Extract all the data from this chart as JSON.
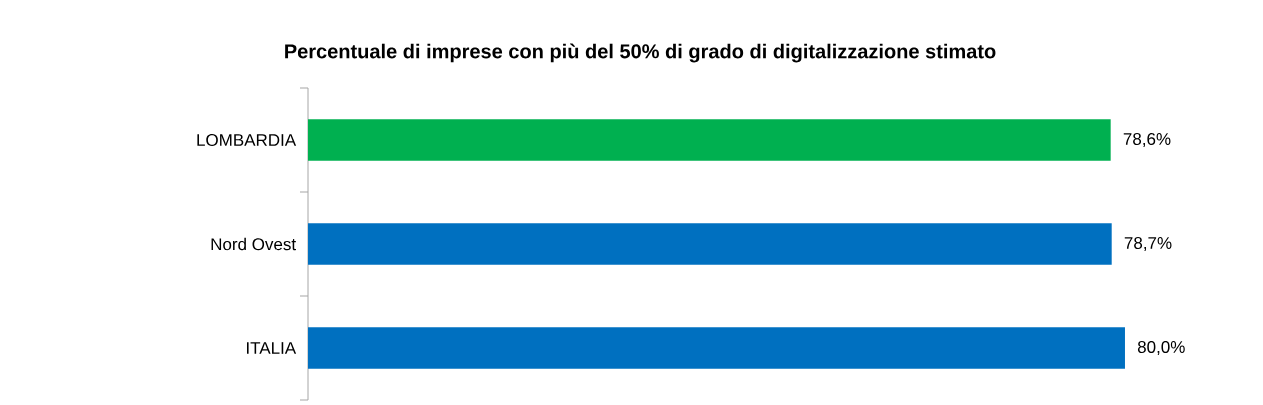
{
  "chart_data": {
    "type": "bar",
    "orientation": "horizontal",
    "title": "Percentuale di imprese con più del 50% di grado di digitalizzazione stimato",
    "categories": [
      "LOMBARDIA",
      "Nord Ovest",
      "ITALIA"
    ],
    "values": [
      78.6,
      78.7,
      80.0
    ],
    "value_labels": [
      "78,6%",
      "78,7%",
      "80,0%"
    ],
    "colors": [
      "#00b050",
      "#0070c0",
      "#0070c0"
    ]
  }
}
